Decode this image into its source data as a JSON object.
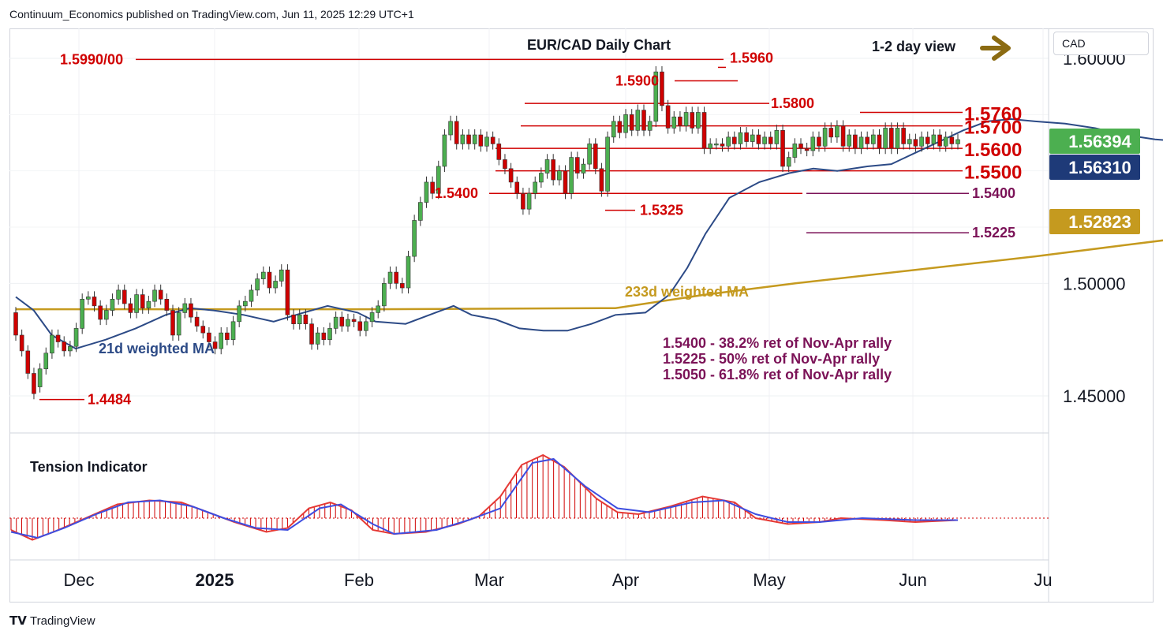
{
  "header": {
    "published": "Continuum_Economics published on TradingView.com, Jun 11, 2025 12:29 UTC+1"
  },
  "currency_selector": "CAD",
  "footer": {
    "logo_text": "TradingView"
  },
  "chart_data": {
    "type": "candlestick",
    "title": "EUR/CAD Daily Chart",
    "view_label": "1-2 day view",
    "x_tick_labels": [
      "Dec",
      "2025",
      "Feb",
      "Mar",
      "Apr",
      "May",
      "Jun",
      "Ju"
    ],
    "y_tick_labels": [
      "1.60000",
      "1.50000",
      "1.45000"
    ],
    "y_ticks": [
      1.6,
      1.5,
      1.45
    ],
    "ylim": [
      1.44,
      1.61
    ],
    "grid": true,
    "last_price": "1.56394",
    "last_price_color": "#4caf50",
    "badge_21d": "1.56310",
    "badge_21d_color": "#1e3a78",
    "badge_233d": "1.52823",
    "badge_233d_color": "#c59a1f",
    "colors": {
      "up": "#4caf50",
      "down": "#d00000",
      "level": "#d00000",
      "ma21": "#2c4a86",
      "ma233": "#c59a1f",
      "retrace": "#7b1257"
    },
    "resistance_levels": [
      "1.5990/00",
      "1.5960",
      "1.5900",
      "1.5800",
      "1.5760",
      "1.5700"
    ],
    "support_levels": [
      "1.5600",
      "1.5500",
      "1.5400",
      "1.5325",
      "1.4484"
    ],
    "retracement_levels": [
      "1.5400",
      "1.5225"
    ],
    "level_values": {
      "1.5990/00": 1.5995,
      "1.5960": 1.596,
      "1.5900": 1.59,
      "1.5800": 1.58,
      "1.5760": 1.576,
      "1.5700": 1.57,
      "1.5600": 1.56,
      "1.5500": 1.55,
      "1.5400": 1.54,
      "1.5325": 1.5325,
      "1.4484": 1.4484,
      "1.5225": 1.5225
    },
    "ma_labels": {
      "ma21": "21d weighted MA",
      "ma233": "233d weighted MA"
    },
    "notes": [
      "1.5400 - 38.2% ret of Nov-Apr rally",
      "1.5225 - 50% ret of Nov-Apr rally",
      "1.5050 - 61.8% ret of Nov-Apr rally"
    ],
    "ma21": [
      [
        0,
        1.494
      ],
      [
        3,
        1.488
      ],
      [
        6,
        1.477
      ],
      [
        10,
        1.471
      ],
      [
        15,
        1.475
      ],
      [
        20,
        1.48
      ],
      [
        25,
        1.486
      ],
      [
        29,
        1.489
      ],
      [
        33,
        1.488
      ],
      [
        38,
        1.486
      ],
      [
        43,
        1.483
      ],
      [
        48,
        1.487
      ],
      [
        52,
        1.49
      ],
      [
        57,
        1.487
      ],
      [
        60,
        1.483
      ],
      [
        65,
        1.482
      ],
      [
        70,
        1.487
      ],
      [
        73,
        1.49
      ],
      [
        76,
        1.486
      ],
      [
        80,
        1.484
      ],
      [
        84,
        1.48
      ],
      [
        88,
        1.479
      ],
      [
        92,
        1.479
      ],
      [
        96,
        1.482
      ],
      [
        100,
        1.486
      ],
      [
        105,
        1.487
      ],
      [
        109,
        1.495
      ],
      [
        112,
        1.507
      ],
      [
        115,
        1.522
      ],
      [
        119,
        1.538
      ],
      [
        124,
        1.545
      ],
      [
        129,
        1.549
      ],
      [
        133,
        1.551
      ],
      [
        137,
        1.55
      ],
      [
        142,
        1.552
      ],
      [
        146,
        1.553
      ],
      [
        150,
        1.558
      ],
      [
        154,
        1.563
      ],
      [
        158,
        1.568
      ],
      [
        162,
        1.572
      ],
      [
        166,
        1.573
      ],
      [
        170,
        1.572
      ],
      [
        175,
        1.571
      ],
      [
        180,
        1.569
      ],
      [
        185,
        1.566
      ],
      [
        190,
        1.564
      ],
      [
        195,
        1.563
      ],
      [
        200,
        1.563
      ],
      [
        206,
        1.5631
      ]
    ],
    "ma233": [
      [
        0,
        1.4885
      ],
      [
        20,
        1.4885
      ],
      [
        60,
        1.4885
      ],
      [
        100,
        1.489
      ],
      [
        115,
        1.495
      ],
      [
        130,
        1.5
      ],
      [
        150,
        1.506
      ],
      [
        170,
        1.512
      ],
      [
        185,
        1.517
      ],
      [
        200,
        1.522
      ],
      [
        206,
        1.5282
      ]
    ],
    "candles": [
      [
        0,
        1.487,
        1.477
      ],
      [
        1,
        1.477,
        1.47
      ],
      [
        2,
        1.47,
        1.46
      ],
      [
        3,
        1.46,
        1.451
      ],
      [
        4,
        1.454,
        1.462
      ],
      [
        5,
        1.462,
        1.469
      ],
      [
        6,
        1.469,
        1.477
      ],
      [
        7,
        1.477,
        1.474
      ],
      [
        8,
        1.474,
        1.47
      ],
      [
        9,
        1.47,
        1.472
      ],
      [
        10,
        1.472,
        1.48
      ],
      [
        11,
        1.48,
        1.493
      ],
      [
        12,
        1.493,
        1.494
      ],
      [
        13,
        1.494,
        1.49
      ],
      [
        14,
        1.49,
        1.484
      ],
      [
        15,
        1.484,
        1.488
      ],
      [
        16,
        1.488,
        1.493
      ],
      [
        17,
        1.493,
        1.497
      ],
      [
        18,
        1.497,
        1.491
      ],
      [
        19,
        1.491,
        1.487
      ],
      [
        20,
        1.487,
        1.495
      ],
      [
        21,
        1.495,
        1.489
      ],
      [
        22,
        1.489,
        1.492
      ],
      [
        23,
        1.492,
        1.497
      ],
      [
        24,
        1.497,
        1.493
      ],
      [
        25,
        1.493,
        1.488
      ],
      [
        26,
        1.488,
        1.477
      ],
      [
        27,
        1.477,
        1.487
      ],
      [
        28,
        1.487,
        1.491
      ],
      [
        29,
        1.491,
        1.485
      ],
      [
        30,
        1.485,
        1.481
      ],
      [
        31,
        1.481,
        1.478
      ],
      [
        32,
        1.478,
        1.474
      ],
      [
        33,
        1.474,
        1.471
      ],
      [
        34,
        1.471,
        1.478
      ],
      [
        35,
        1.478,
        1.475
      ],
      [
        36,
        1.475,
        1.483
      ],
      [
        37,
        1.483,
        1.49
      ],
      [
        38,
        1.49,
        1.492
      ],
      [
        39,
        1.492,
        1.497
      ],
      [
        40,
        1.497,
        1.502
      ],
      [
        41,
        1.502,
        1.505
      ],
      [
        42,
        1.505,
        1.498
      ],
      [
        43,
        1.498,
        1.501
      ],
      [
        44,
        1.501,
        1.506
      ],
      [
        45,
        1.506,
        1.486
      ],
      [
        46,
        1.486,
        1.482
      ],
      [
        47,
        1.482,
        1.486
      ],
      [
        48,
        1.486,
        1.482
      ],
      [
        49,
        1.482,
        1.473
      ],
      [
        50,
        1.473,
        1.478
      ],
      [
        51,
        1.478,
        1.475
      ],
      [
        52,
        1.475,
        1.48
      ],
      [
        53,
        1.48,
        1.485
      ],
      [
        54,
        1.485,
        1.481
      ],
      [
        55,
        1.481,
        1.484
      ],
      [
        56,
        1.484,
        1.483
      ],
      [
        57,
        1.483,
        1.479
      ],
      [
        58,
        1.479,
        1.483
      ],
      [
        59,
        1.483,
        1.487
      ],
      [
        60,
        1.487,
        1.49
      ],
      [
        61,
        1.49,
        1.5
      ],
      [
        62,
        1.5,
        1.505
      ],
      [
        63,
        1.505,
        1.5
      ],
      [
        64,
        1.5,
        1.498
      ],
      [
        65,
        1.498,
        1.512
      ],
      [
        66,
        1.512,
        1.528
      ],
      [
        67,
        1.528,
        1.536
      ],
      [
        68,
        1.536,
        1.545
      ],
      [
        69,
        1.545,
        1.54
      ],
      [
        70,
        1.54,
        1.552
      ],
      [
        71,
        1.552,
        1.566
      ],
      [
        72,
        1.566,
        1.572
      ],
      [
        73,
        1.572,
        1.562
      ],
      [
        74,
        1.562,
        1.566
      ],
      [
        75,
        1.566,
        1.562
      ],
      [
        76,
        1.562,
        1.566
      ],
      [
        77,
        1.566,
        1.561
      ],
      [
        78,
        1.561,
        1.565
      ],
      [
        79,
        1.565,
        1.562
      ],
      [
        80,
        1.562,
        1.555
      ],
      [
        81,
        1.555,
        1.551
      ],
      [
        82,
        1.551,
        1.545
      ],
      [
        83,
        1.545,
        1.54
      ],
      [
        84,
        1.54,
        1.533
      ],
      [
        85,
        1.533,
        1.54
      ],
      [
        86,
        1.54,
        1.545
      ],
      [
        87,
        1.545,
        1.549
      ],
      [
        88,
        1.549,
        1.555
      ],
      [
        89,
        1.555,
        1.546
      ],
      [
        90,
        1.546,
        1.55
      ],
      [
        91,
        1.55,
        1.54
      ],
      [
        92,
        1.54,
        1.556
      ],
      [
        93,
        1.556,
        1.549
      ],
      [
        94,
        1.549,
        1.553
      ],
      [
        95,
        1.553,
        1.562
      ],
      [
        96,
        1.562,
        1.551
      ],
      [
        97,
        1.551,
        1.541
      ],
      [
        98,
        1.541,
        1.565
      ],
      [
        99,
        1.565,
        1.572
      ],
      [
        100,
        1.572,
        1.567
      ],
      [
        101,
        1.567,
        1.575
      ],
      [
        102,
        1.575,
        1.568
      ],
      [
        103,
        1.568,
        1.577
      ],
      [
        104,
        1.577,
        1.568
      ],
      [
        105,
        1.568,
        1.572
      ],
      [
        106,
        1.572,
        1.594
      ],
      [
        107,
        1.594,
        1.579
      ],
      [
        108,
        1.579,
        1.569
      ],
      [
        109,
        1.569,
        1.574
      ],
      [
        110,
        1.574,
        1.57
      ],
      [
        111,
        1.57,
        1.576
      ],
      [
        112,
        1.576,
        1.569
      ],
      [
        113,
        1.569,
        1.576
      ],
      [
        114,
        1.576,
        1.56
      ],
      [
        115,
        1.56,
        1.562
      ],
      [
        116,
        1.562,
        1.562
      ],
      [
        117,
        1.562,
        1.561
      ],
      [
        118,
        1.561,
        1.565
      ],
      [
        119,
        1.565,
        1.562
      ],
      [
        120,
        1.562,
        1.567
      ],
      [
        121,
        1.567,
        1.563
      ],
      [
        122,
        1.563,
        1.566
      ],
      [
        123,
        1.566,
        1.562
      ],
      [
        124,
        1.562,
        1.565
      ],
      [
        125,
        1.565,
        1.562
      ],
      [
        126,
        1.562,
        1.568
      ],
      [
        127,
        1.568,
        1.552
      ],
      [
        128,
        1.552,
        1.556
      ],
      [
        129,
        1.556,
        1.562
      ],
      [
        130,
        1.562,
        1.56
      ],
      [
        131,
        1.56,
        1.559
      ],
      [
        132,
        1.559,
        1.565
      ],
      [
        133,
        1.565,
        1.561
      ],
      [
        134,
        1.561,
        1.569
      ],
      [
        135,
        1.569,
        1.565
      ],
      [
        136,
        1.565,
        1.57
      ],
      [
        137,
        1.57,
        1.561
      ],
      [
        138,
        1.561,
        1.566
      ],
      [
        139,
        1.566,
        1.56
      ],
      [
        140,
        1.56,
        1.565
      ],
      [
        141,
        1.565,
        1.562
      ],
      [
        142,
        1.562,
        1.566
      ],
      [
        143,
        1.566,
        1.56
      ],
      [
        144,
        1.56,
        1.569
      ],
      [
        145,
        1.569,
        1.56
      ],
      [
        146,
        1.56,
        1.569
      ],
      [
        147,
        1.569,
        1.562
      ],
      [
        148,
        1.562,
        1.564
      ],
      [
        149,
        1.564,
        1.561
      ],
      [
        150,
        1.561,
        1.565
      ],
      [
        151,
        1.565,
        1.562
      ],
      [
        152,
        1.562,
        1.566
      ],
      [
        153,
        1.566,
        1.561
      ],
      [
        154,
        1.561,
        1.565
      ],
      [
        155,
        1.565,
        1.562
      ],
      [
        156,
        1.562,
        1.5639
      ]
    ],
    "tension_indicator": {
      "label": "Tension Indicator",
      "red_line": [
        [
          0,
          -0.6
        ],
        [
          4,
          -1.1
        ],
        [
          8,
          -0.7
        ],
        [
          14,
          0.0
        ],
        [
          20,
          0.7
        ],
        [
          26,
          0.9
        ],
        [
          32,
          0.8
        ],
        [
          38,
          0.2
        ],
        [
          42,
          -0.2
        ],
        [
          48,
          -0.7
        ],
        [
          52,
          -0.5
        ],
        [
          56,
          0.5
        ],
        [
          60,
          0.8
        ],
        [
          64,
          0.4
        ],
        [
          68,
          -0.6
        ],
        [
          72,
          -0.8
        ],
        [
          78,
          -0.7
        ],
        [
          84,
          -0.3
        ],
        [
          88,
          0.1
        ],
        [
          92,
          1.1
        ],
        [
          96,
          2.7
        ],
        [
          100,
          3.2
        ],
        [
          104,
          2.6
        ],
        [
          110,
          1.0
        ],
        [
          114,
          0.3
        ],
        [
          118,
          0.2
        ],
        [
          124,
          0.6
        ],
        [
          130,
          1.1
        ],
        [
          136,
          0.8
        ],
        [
          140,
          0.0
        ],
        [
          146,
          -0.3
        ],
        [
          152,
          -0.2
        ],
        [
          156,
          0.0
        ],
        [
          164,
          -0.1
        ],
        [
          170,
          -0.2
        ],
        [
          178,
          -0.1
        ]
      ],
      "blue_line": [
        [
          0,
          -0.7
        ],
        [
          5,
          -1.0
        ],
        [
          10,
          -0.5
        ],
        [
          16,
          0.2
        ],
        [
          22,
          0.8
        ],
        [
          28,
          0.9
        ],
        [
          34,
          0.6
        ],
        [
          40,
          0.0
        ],
        [
          46,
          -0.5
        ],
        [
          52,
          -0.6
        ],
        [
          58,
          0.5
        ],
        [
          62,
          0.7
        ],
        [
          68,
          -0.3
        ],
        [
          72,
          -0.8
        ],
        [
          80,
          -0.6
        ],
        [
          86,
          -0.1
        ],
        [
          92,
          0.5
        ],
        [
          98,
          2.8
        ],
        [
          102,
          3.0
        ],
        [
          108,
          1.6
        ],
        [
          114,
          0.5
        ],
        [
          120,
          0.3
        ],
        [
          128,
          0.8
        ],
        [
          134,
          0.9
        ],
        [
          140,
          0.2
        ],
        [
          146,
          -0.2
        ],
        [
          152,
          -0.2
        ],
        [
          160,
          0.0
        ],
        [
          170,
          -0.1
        ],
        [
          178,
          -0.1
        ]
      ]
    }
  }
}
